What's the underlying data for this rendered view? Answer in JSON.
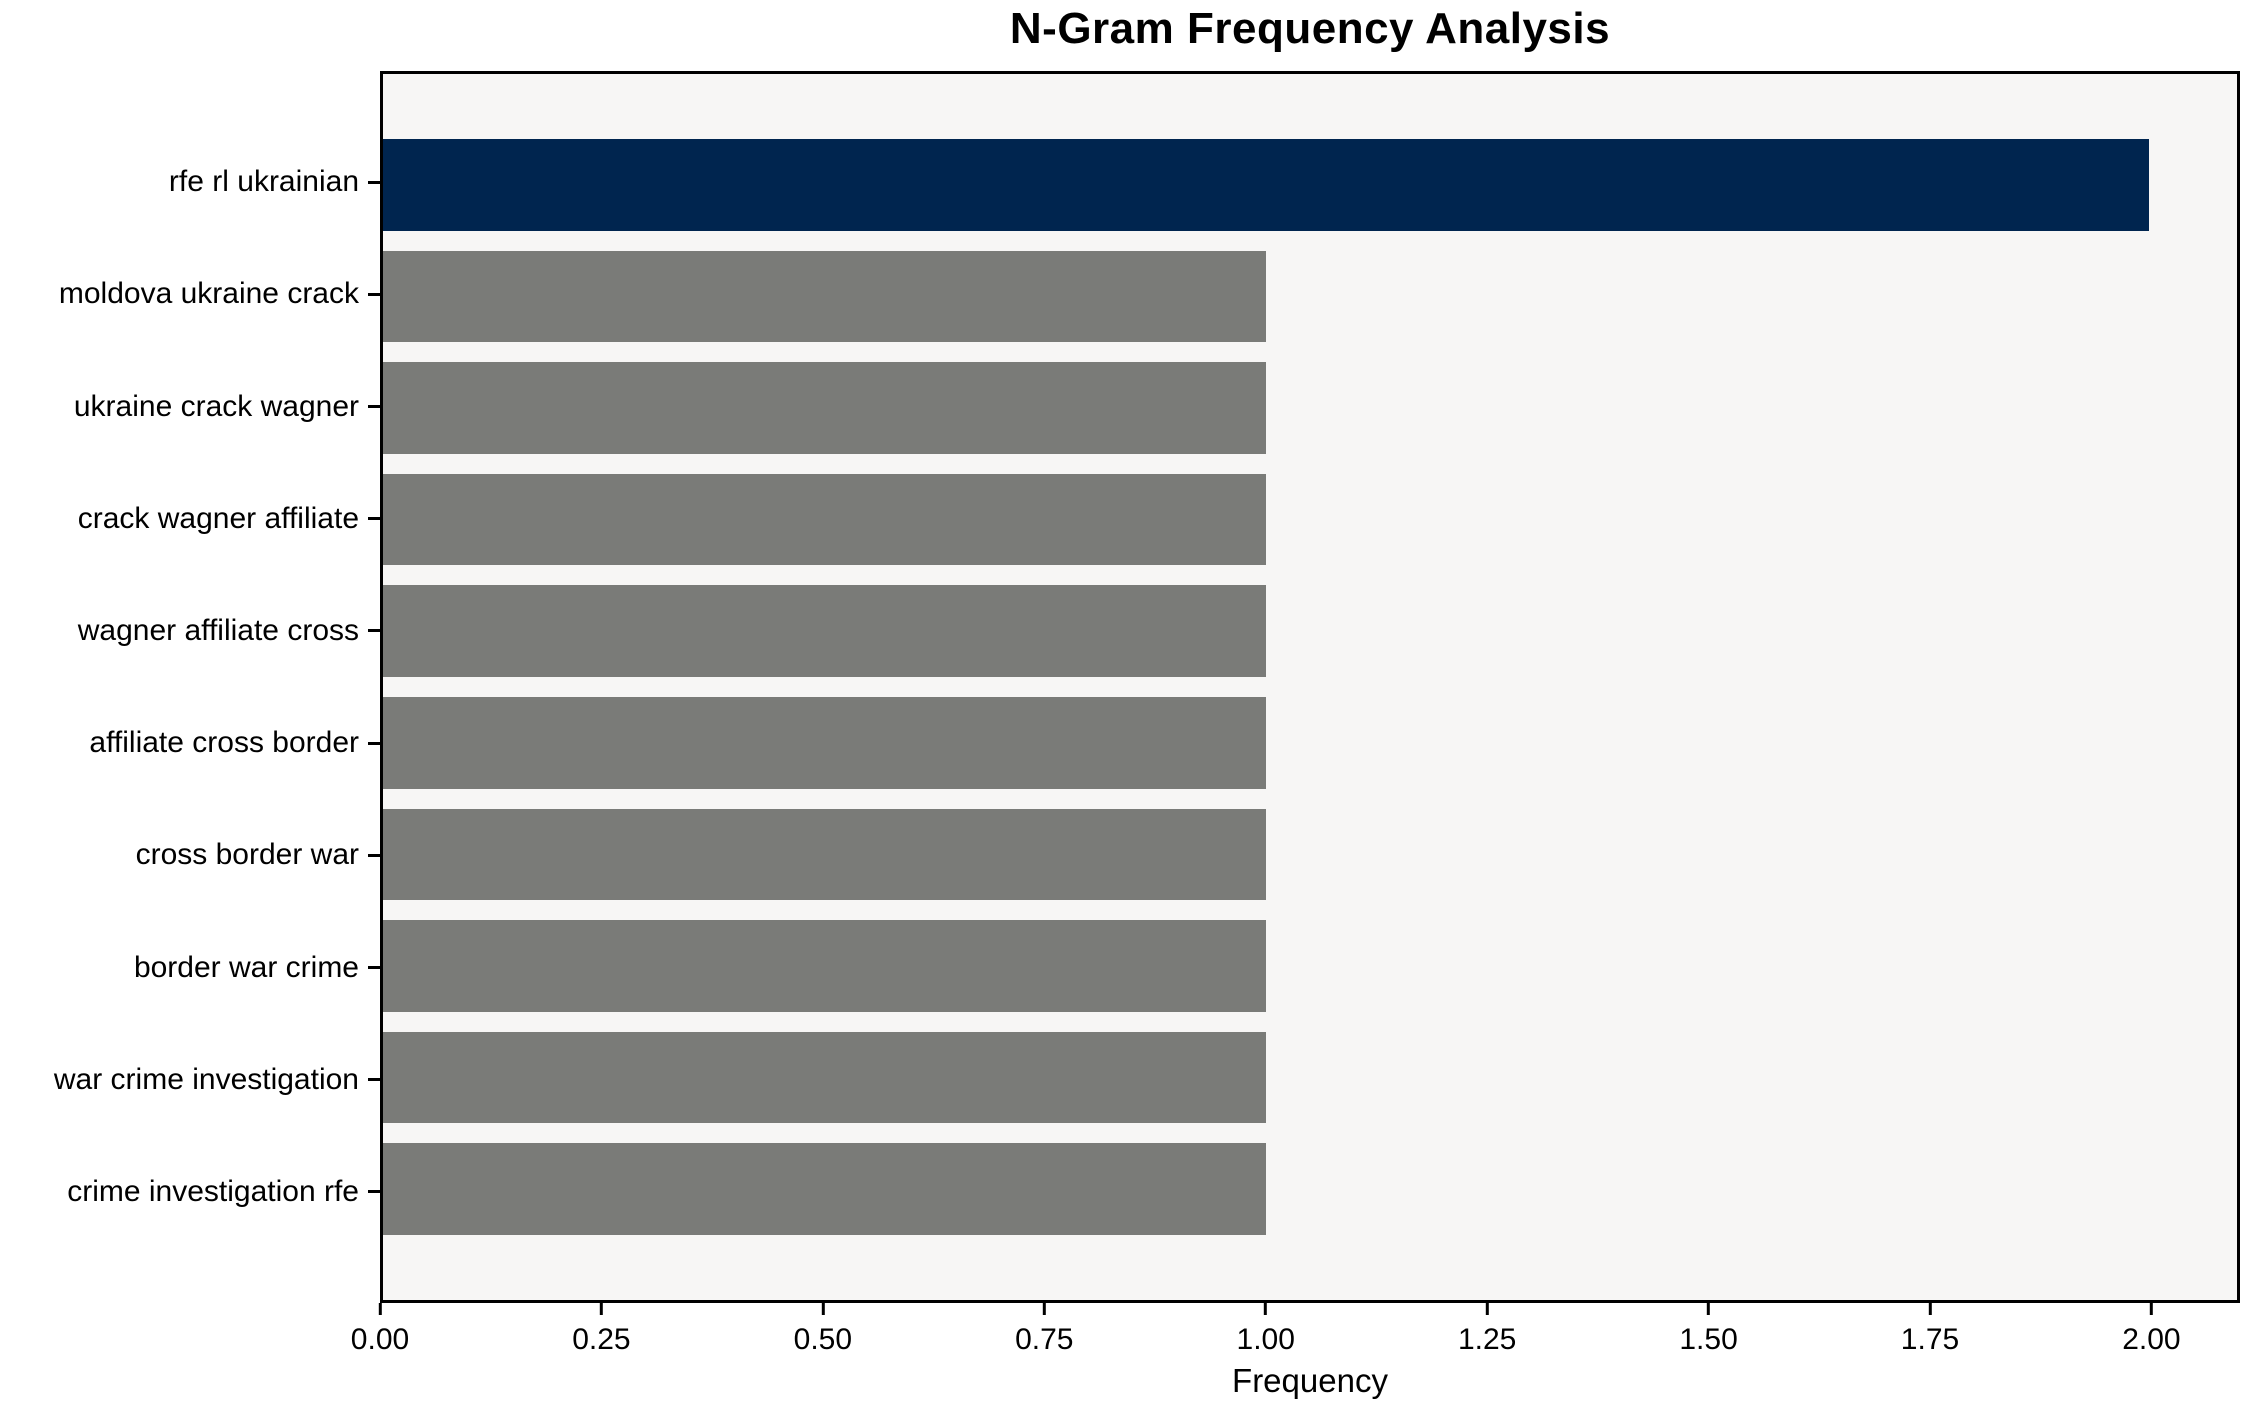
{
  "chart_data": {
    "type": "bar",
    "orientation": "horizontal",
    "title": "N-Gram Frequency Analysis",
    "xlabel": "Frequency",
    "ylabel": "",
    "categories": [
      "rfe rl ukrainian",
      "moldova ukraine crack",
      "ukraine crack wagner",
      "crack wagner affiliate",
      "wagner affiliate cross",
      "affiliate cross border",
      "cross border war",
      "border war crime",
      "war crime investigation",
      "crime investigation rfe"
    ],
    "values": [
      2.0,
      1.0,
      1.0,
      1.0,
      1.0,
      1.0,
      1.0,
      1.0,
      1.0,
      1.0
    ],
    "bar_colors": [
      "#00254f",
      "#7a7b78",
      "#7a7b78",
      "#7a7b78",
      "#7a7b78",
      "#7a7b78",
      "#7a7b78",
      "#7a7b78",
      "#7a7b78",
      "#7a7b78"
    ],
    "xlim": [
      0,
      2.1
    ],
    "x_tick_values": [
      0.0,
      0.25,
      0.5,
      0.75,
      1.0,
      1.25,
      1.5,
      1.75,
      2.0
    ],
    "x_tick_labels": [
      "0.00",
      "0.25",
      "0.50",
      "0.75",
      "1.00",
      "1.25",
      "1.50",
      "1.75",
      "2.00"
    ],
    "grid": false,
    "legend_position": "none",
    "colors": {
      "highlight_bar": "#00254f",
      "default_bar": "#7a7b78",
      "plot_background": "#f7f6f5",
      "figure_background": "#ffffff",
      "axis": "#000000",
      "text": "#000000"
    }
  }
}
